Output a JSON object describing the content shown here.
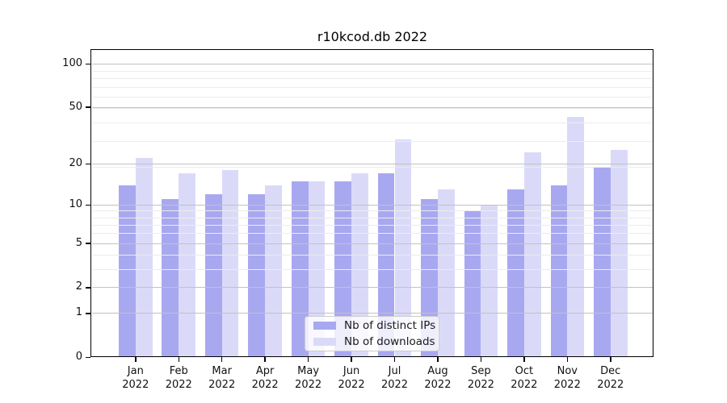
{
  "chart_data": {
    "type": "bar",
    "title": "r10kcod.db 2022",
    "xlabel": "",
    "ylabel": "",
    "year_label": "2022",
    "categories": [
      "Jan",
      "Feb",
      "Mar",
      "Apr",
      "May",
      "Jun",
      "Jul",
      "Aug",
      "Sep",
      "Oct",
      "Nov",
      "Dec"
    ],
    "series": [
      {
        "name": "Nb of distinct IPs",
        "color": "#a8a8f1",
        "values": [
          14,
          11,
          12,
          12,
          15,
          15,
          17,
          11,
          9,
          13,
          14,
          19
        ]
      },
      {
        "name": "Nb of downloads",
        "color": "#dadaf8",
        "values": [
          22,
          17,
          18,
          14,
          15,
          17,
          30,
          13,
          10,
          24,
          43,
          25
        ]
      }
    ],
    "yscale": "log1p",
    "ylim": [
      0,
      126
    ],
    "yticks": [
      100,
      50,
      20,
      10,
      5,
      2,
      1,
      0
    ],
    "minor_yticks": [
      3,
      4,
      6,
      7,
      8,
      9,
      19,
      29,
      39,
      49,
      59,
      69,
      79,
      89
    ],
    "grid": true,
    "legend_position": "bottom-center"
  }
}
